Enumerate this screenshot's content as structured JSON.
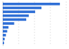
{
  "chart_data": {
    "type": "bar",
    "orientation": "horizontal",
    "categories": [
      null,
      null,
      null,
      null,
      null,
      null,
      null,
      null,
      null,
      null,
      null
    ],
    "values": [
      90,
      61,
      51,
      41,
      37,
      18,
      9,
      7,
      5,
      3,
      2
    ],
    "color": "#2f6fd6",
    "xlim": [
      0,
      100
    ],
    "xticks": [
      0,
      25,
      50,
      75,
      100
    ],
    "grid": true,
    "tick_labels": false
  }
}
